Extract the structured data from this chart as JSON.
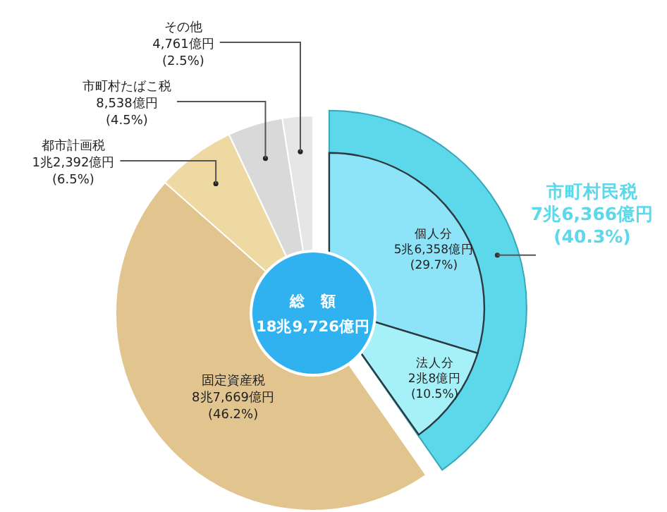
{
  "chart_data": [
    {
      "type": "donut",
      "categories": [
        "市町村民税",
        "固定資産税",
        "都市計画税",
        "市町村たばこ税",
        "その他"
      ],
      "values": [
        40.3,
        46.2,
        6.5,
        4.5,
        2.5
      ],
      "colors": [
        "#5dd8ea",
        "#e2c48f",
        "#eed9a3",
        "#d9d9d9",
        "#e6e6e6"
      ],
      "value_labels": [
        "7兆6,366億円\n(40.3%)",
        "8兆7,669億円\n(46.2%)",
        "1兆2,392億円\n(6.5%)",
        "8,538億円\n(4.5%)",
        "4,761億円\n(2.5%)"
      ],
      "annotations": [
        "総　額",
        "18兆9,726億円"
      ]
    },
    {
      "type": "pie",
      "categories": [
        "個人分",
        "法人分"
      ],
      "values": [
        29.7,
        10.5
      ],
      "colors": [
        "#8de3f7",
        "#a6f0f8"
      ],
      "value_labels": [
        "5兆6,358億円\n(29.7%)",
        "2兆8億円\n(10.5%)"
      ]
    }
  ]
}
